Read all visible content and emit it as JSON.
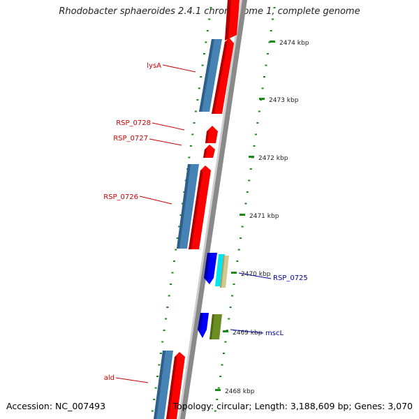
{
  "title": "Rhodobacter sphaeroides 2.4.1 chromosome 1, complete genome",
  "footer": {
    "accession": "Accession: NC_007493",
    "summary": "Topology: circular; Length: 3,188,609 bp; Genes: 3,070"
  },
  "colors": {
    "forward_cds": "#ff0000",
    "gene_track": "#4682b4",
    "reverse_cds": "#0000ff",
    "label_forward": "#cc0000",
    "label_reverse": "#000099",
    "tick": "#1a8a1a",
    "backbone": "#888888"
  },
  "scale_labels": [
    {
      "text": "2474 kbp"
    },
    {
      "text": "2473 kbp"
    },
    {
      "text": "2472 kbp"
    },
    {
      "text": "2471 kbp"
    },
    {
      "text": "2470 kbp"
    },
    {
      "text": "2469 kbp"
    },
    {
      "text": "2468 kbp"
    }
  ],
  "gene_labels": [
    {
      "text": "lysA",
      "strand": "forward"
    },
    {
      "text": "RSP_0728",
      "strand": "forward"
    },
    {
      "text": "RSP_0727",
      "strand": "forward"
    },
    {
      "text": "RSP_0726",
      "strand": "forward"
    },
    {
      "text": "RSP_0725",
      "strand": "reverse"
    },
    {
      "text": "mscL",
      "strand": "reverse"
    },
    {
      "text": "ald",
      "strand": "forward"
    }
  ]
}
